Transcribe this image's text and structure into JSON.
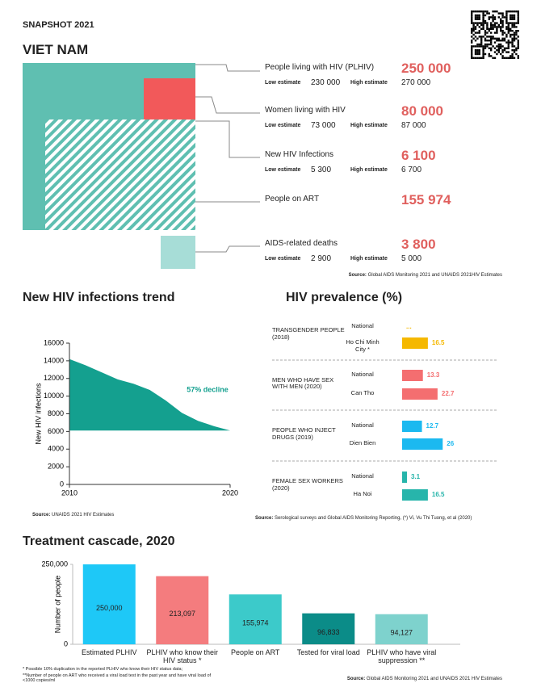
{
  "header": {
    "label": "SNAPSHOT 2021",
    "country": "VIET NAM"
  },
  "summary": {
    "items": [
      {
        "label": "People living with HIV (PLHIV)",
        "value": "250 000",
        "low": {
          "label": "Low estimate",
          "value": "230 000"
        },
        "high": {
          "label": "High estimate",
          "value": "270 000"
        }
      },
      {
        "label": "Women living with HIV",
        "value": "80 000",
        "low": {
          "label": "Low estimate",
          "value": "73 000"
        },
        "high": {
          "label": "High estimate",
          "value": "87 000"
        }
      },
      {
        "label": "New HIV Infections",
        "value": "6 100",
        "low": {
          "label": "Low estimate",
          "value": "5 300"
        },
        "high": {
          "label": "High estimate",
          "value": "6 700"
        }
      },
      {
        "label": "People on ART",
        "value": "155 974"
      },
      {
        "label": "AIDS-related deaths",
        "value": "3 800",
        "low": {
          "label": "Low estimate",
          "value": "2 900"
        },
        "high": {
          "label": "High estimate",
          "value": "5 000"
        }
      }
    ],
    "source_label": "Source:",
    "source": "Global AIDS Monitoring 2021 and UNAIDS 2021HIV Estimates"
  },
  "chart_data": [
    {
      "type": "area",
      "title": "New HIV infections trend",
      "ylabel": "New HIV infections",
      "x": [
        2010,
        2011,
        2012,
        2013,
        2014,
        2015,
        2016,
        2017,
        2018,
        2019,
        2020
      ],
      "values": [
        14200,
        13500,
        12700,
        11900,
        11400,
        10700,
        9500,
        8100,
        7200,
        6600,
        6100
      ],
      "color": "#14a08f",
      "xlim": [
        2010,
        2020
      ],
      "xticks": [
        2010,
        2020
      ],
      "ylim": [
        0,
        16000
      ],
      "yticks": [
        0,
        2000,
        4000,
        6000,
        8000,
        10000,
        12000,
        14000,
        16000
      ],
      "annotation": "57% decline",
      "source_label": "Source:",
      "source": "UNAIDS 2021 HIV Estimates"
    },
    {
      "type": "hbar",
      "title": "HIV prevalence (%)",
      "xlim": [
        0,
        30
      ],
      "groups": [
        {
          "name": "TRANSGENDER PEOPLE (2018)",
          "color": "#f5b800",
          "categories": [
            "National",
            "Ho Chi Minh City *"
          ],
          "values": [
            null,
            16.5
          ],
          "value_labels": [
            "...",
            "16.5"
          ]
        },
        {
          "name": "MEN WHO HAVE SEX WITH MEN (2020)",
          "color": "#f46e70",
          "categories": [
            "National",
            "Can Tho"
          ],
          "values": [
            13.3,
            22.7
          ]
        },
        {
          "name": "PEOPLE WHO INJECT DRUGS (2019)",
          "color": "#1bb9f0",
          "categories": [
            "National",
            "Dien Bien"
          ],
          "values": [
            12.7,
            26
          ]
        },
        {
          "name": "FEMALE SEX WORKERS (2020)",
          "color": "#27b5ab",
          "categories": [
            "National",
            "Ha Noi"
          ],
          "values": [
            3.1,
            16.5
          ]
        }
      ],
      "source_label": "Source:",
      "source": "Serological surveys and Global AIDS Monitoring Reporting,  (*) Vi, Vu Thi Tuong,  et al (2020)"
    },
    {
      "type": "bar",
      "title": "Treatment cascade, 2020",
      "ylabel": "Number of people",
      "categories": [
        "Estimated PLHIV",
        "PLHIV who know their HIV status *",
        "People on ART",
        "Tested for viral load",
        "PLHIV who have viral suppression **"
      ],
      "values": [
        250000,
        213097,
        155974,
        96833,
        94127
      ],
      "value_labels": [
        "250,000",
        "213,097",
        "155,974",
        "96,833",
        "94,127"
      ],
      "colors": [
        "#1ec8f7",
        "#f47c7e",
        "#3ccaca",
        "#0b8c88",
        "#7ed2cd"
      ],
      "ylim": [
        0,
        250000
      ],
      "yticks": [
        0,
        {
          "value": 250000,
          "label": "250,000"
        }
      ],
      "notes": [
        "* Possible 10% duplication in the reported PLHIV who know their HIV status data;",
        "**Number of people on ART who received a viral load test in the past year and have viral load of <1000 copies/ml"
      ],
      "source_label": "Source:",
      "source": "Global AIDS Monitoring 2021 and UNAIDS 2021 HIV Estimates"
    }
  ]
}
